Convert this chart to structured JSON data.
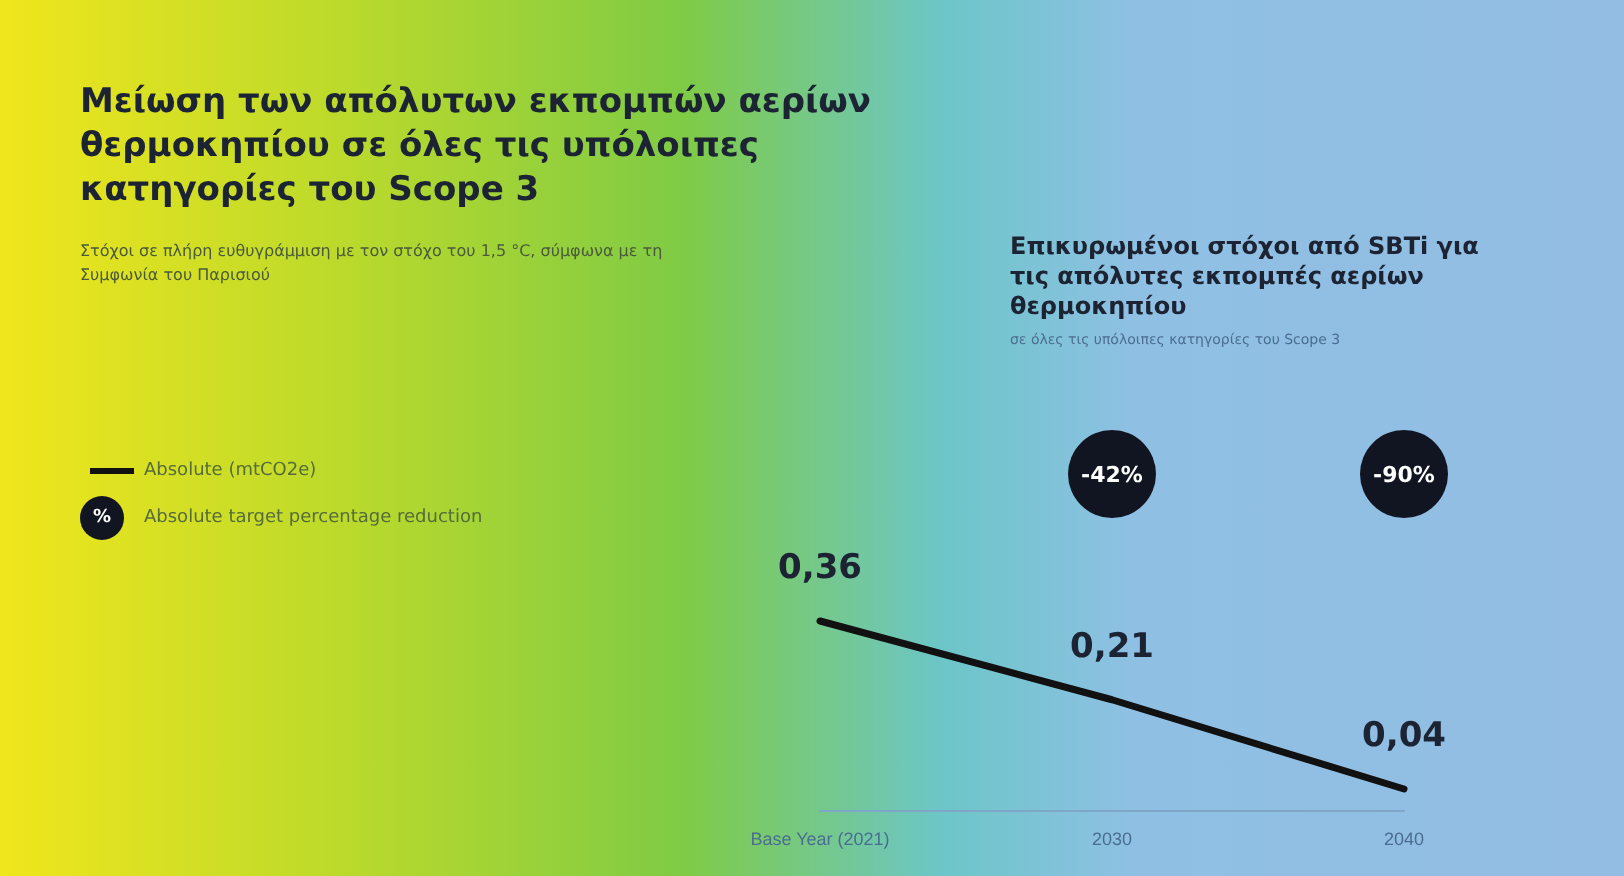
{
  "chart_data": {
    "type": "line",
    "title": "Μείωση των απόλυτων εκπομπών αερίων θερμοκηπίου σε όλες τις υπόλοιπες κατηγορίες του Scope 3",
    "subtitle": "Στόχοι σε πλήρη ευθυγράμμιση με τον στόχο του 1,5 °C, σύμφωνα με τη Συμφωνία του Παρισιού",
    "categories": [
      "Base Year (2021)",
      "2030",
      "2040"
    ],
    "series": [
      {
        "name": "Absolute (mtCO2e)",
        "color": "#111111",
        "values": [
          0.36,
          0.21,
          0.04
        ],
        "value_labels": [
          "0,36",
          "0,21",
          "0,04"
        ]
      }
    ],
    "annotations": [
      "Επικυρωμένοι στόχοι από SBTi για τις απόλυτες εκπομπές αερίων θερμοκηπίου",
      "σε όλες τις υπόλοιπες κατηγορίες του Scope 3",
      "Absolute target percentage reduction",
      "%",
      "-42%",
      "-90%"
    ],
    "legend": "left",
    "marker": "none",
    "grid": false
  }
}
